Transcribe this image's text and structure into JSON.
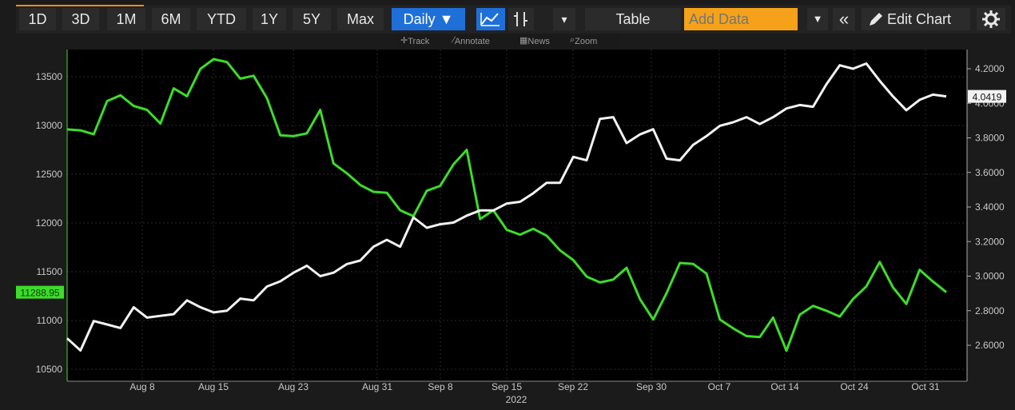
{
  "toolbar": {
    "ranges": [
      "1D",
      "3D",
      "1M",
      "6M",
      "YTD",
      "1Y",
      "5Y",
      "Max"
    ],
    "frequency": "Daily ▼",
    "table_label": "Table",
    "add_data_placeholder": "Add Data",
    "edit_chart_label": "Edit Chart",
    "dropdown_glyph": "▾",
    "collapse_glyph": "«",
    "menu_glyph": "▼"
  },
  "subbar": {
    "track": "Track",
    "annotate": "Annotate",
    "news": "News",
    "zoom": "Zoom"
  },
  "colors": {
    "background": "#000000",
    "green_series": "#3ddc2a",
    "white_series": "#f2f2f2",
    "accent_blue": "#1f6fd8",
    "add_data_orange": "#f5a21a"
  },
  "chart_data": {
    "type": "line",
    "x_tick_labels": [
      "Aug 8",
      "Aug 15",
      "Aug 23",
      "Aug 31",
      "Sep 8",
      "Sep 15",
      "Sep 22",
      "Sep 30",
      "Oct 7",
      "Oct 14",
      "Oct 24",
      "Oct 31"
    ],
    "x_year_label": "2022",
    "left_axis": {
      "ticks": [
        10500,
        11000,
        11500,
        12000,
        12500,
        13000,
        13500
      ],
      "ylim": [
        10500,
        13600
      ]
    },
    "right_axis": {
      "ticks": [
        "2.6000",
        "2.8000",
        "3.0000",
        "3.2000",
        "3.4000",
        "3.6000",
        "3.8000",
        "4.0000",
        "4.2000"
      ],
      "ylim": [
        2.55,
        4.25
      ]
    },
    "grid": true,
    "series": [
      {
        "axis": "left",
        "color": "#3ddc2a",
        "last_value_label": "11288.95",
        "values": [
          12960,
          12950,
          12910,
          13250,
          13310,
          13200,
          13160,
          13020,
          13380,
          13300,
          13580,
          13680,
          13650,
          13480,
          13510,
          13280,
          12900,
          12890,
          12920,
          13160,
          12610,
          12510,
          12390,
          12320,
          12310,
          12130,
          12070,
          12330,
          12380,
          12600,
          12750,
          12040,
          12130,
          11930,
          11880,
          11940,
          11870,
          11720,
          11620,
          11450,
          11390,
          11420,
          11540,
          11220,
          11010,
          11280,
          11590,
          11580,
          11480,
          11010,
          10920,
          10840,
          10830,
          11030,
          10690,
          11060,
          11150,
          11100,
          11040,
          11220,
          11350,
          11600,
          11340,
          11170,
          11520,
          11400,
          11290
        ]
      },
      {
        "axis": "right",
        "color": "#f2f2f2",
        "last_value_label": "4.0419",
        "values": [
          2.64,
          2.57,
          2.74,
          2.72,
          2.7,
          2.82,
          2.76,
          2.77,
          2.78,
          2.86,
          2.82,
          2.79,
          2.8,
          2.87,
          2.86,
          2.94,
          2.97,
          3.02,
          3.06,
          3.0,
          3.02,
          3.07,
          3.09,
          3.17,
          3.21,
          3.17,
          3.34,
          3.28,
          3.3,
          3.31,
          3.35,
          3.38,
          3.38,
          3.42,
          3.43,
          3.48,
          3.54,
          3.54,
          3.69,
          3.67,
          3.91,
          3.92,
          3.77,
          3.82,
          3.85,
          3.68,
          3.67,
          3.76,
          3.81,
          3.87,
          3.89,
          3.92,
          3.88,
          3.92,
          3.97,
          3.99,
          3.98,
          4.11,
          4.22,
          4.2,
          4.23,
          4.13,
          4.04,
          3.96,
          4.02,
          4.05,
          4.04
        ]
      }
    ]
  }
}
